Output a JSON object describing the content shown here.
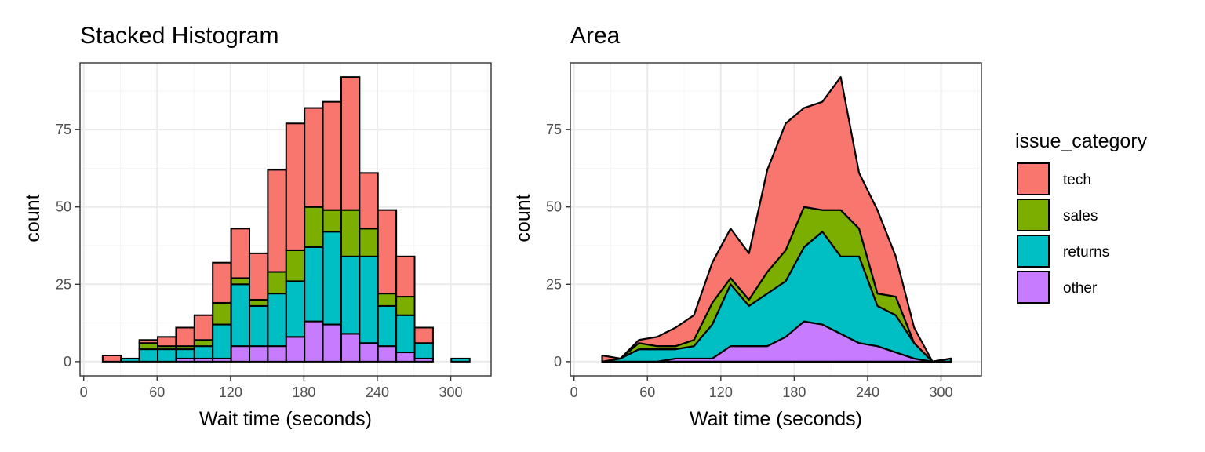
{
  "chart_data": [
    {
      "type": "bar",
      "title": "Stacked Histogram",
      "xlabel": "Wait time (seconds)",
      "ylabel": "count",
      "xlim": [
        -3,
        333
      ],
      "ylim": [
        -4.6,
        96.6
      ],
      "x_ticks": [
        0,
        60,
        120,
        180,
        240,
        300
      ],
      "y_ticks": [
        0,
        25,
        50,
        75
      ],
      "bin_width": 15,
      "x": [
        23,
        38,
        53,
        68,
        83,
        98,
        113,
        128,
        143,
        158,
        173,
        188,
        203,
        218,
        233,
        248,
        263,
        278,
        293,
        308
      ],
      "series": [
        {
          "name": "other",
          "values": [
            0,
            0,
            0,
            0,
            1,
            1,
            1,
            5,
            5,
            5,
            8,
            13,
            12,
            9,
            6,
            5,
            3,
            1,
            0,
            0
          ]
        },
        {
          "name": "returns",
          "values": [
            0,
            1,
            4,
            4,
            3,
            4,
            11,
            20,
            13,
            17,
            18,
            24,
            30,
            25,
            28,
            13,
            12,
            5,
            0,
            1
          ]
        },
        {
          "name": "sales",
          "values": [
            0,
            0,
            2,
            1,
            1,
            2,
            7,
            2,
            2,
            7,
            10,
            13,
            7,
            15,
            9,
            4,
            6,
            0,
            0,
            0
          ]
        },
        {
          "name": "tech",
          "values": [
            2,
            0,
            1,
            3,
            6,
            8,
            13,
            16,
            15,
            33,
            41,
            32,
            35,
            43,
            18,
            27,
            13,
            5,
            0,
            0
          ]
        }
      ],
      "grid": true
    },
    {
      "type": "area",
      "title": "Area",
      "xlabel": "Wait time (seconds)",
      "ylabel": "count",
      "xlim": [
        -3,
        333
      ],
      "ylim": [
        -4.6,
        96.6
      ],
      "x_ticks": [
        0,
        60,
        120,
        180,
        240,
        300
      ],
      "y_ticks": [
        0,
        25,
        50,
        75
      ],
      "x": [
        23,
        38,
        53,
        68,
        83,
        98,
        113,
        128,
        143,
        158,
        173,
        188,
        203,
        218,
        233,
        248,
        263,
        278,
        293,
        308
      ],
      "series": [
        {
          "name": "other",
          "values": [
            0,
            0,
            0,
            0,
            1,
            1,
            1,
            5,
            5,
            5,
            8,
            13,
            12,
            9,
            6,
            5,
            3,
            1,
            0,
            0
          ]
        },
        {
          "name": "returns",
          "values": [
            0,
            1,
            4,
            4,
            3,
            4,
            11,
            20,
            13,
            17,
            18,
            24,
            30,
            25,
            28,
            13,
            12,
            5,
            0,
            1
          ]
        },
        {
          "name": "sales",
          "values": [
            0,
            0,
            2,
            1,
            1,
            2,
            7,
            2,
            2,
            7,
            10,
            13,
            7,
            15,
            9,
            4,
            6,
            0,
            0,
            0
          ]
        },
        {
          "name": "tech",
          "values": [
            2,
            0,
            1,
            3,
            6,
            8,
            13,
            16,
            15,
            33,
            41,
            32,
            35,
            43,
            18,
            27,
            13,
            5,
            0,
            0
          ]
        }
      ],
      "grid": true
    }
  ],
  "legend": {
    "title": "issue_category",
    "placement": "right",
    "items": [
      {
        "name": "tech",
        "color": "#F8766D"
      },
      {
        "name": "sales",
        "color": "#7CAE00"
      },
      {
        "name": "returns",
        "color": "#00BFC4"
      },
      {
        "name": "other",
        "color": "#C77CFF"
      }
    ]
  },
  "colors": {
    "tech": "#F8766D",
    "sales": "#7CAE00",
    "returns": "#00BFC4",
    "other": "#C77CFF",
    "outline": "#000000"
  }
}
